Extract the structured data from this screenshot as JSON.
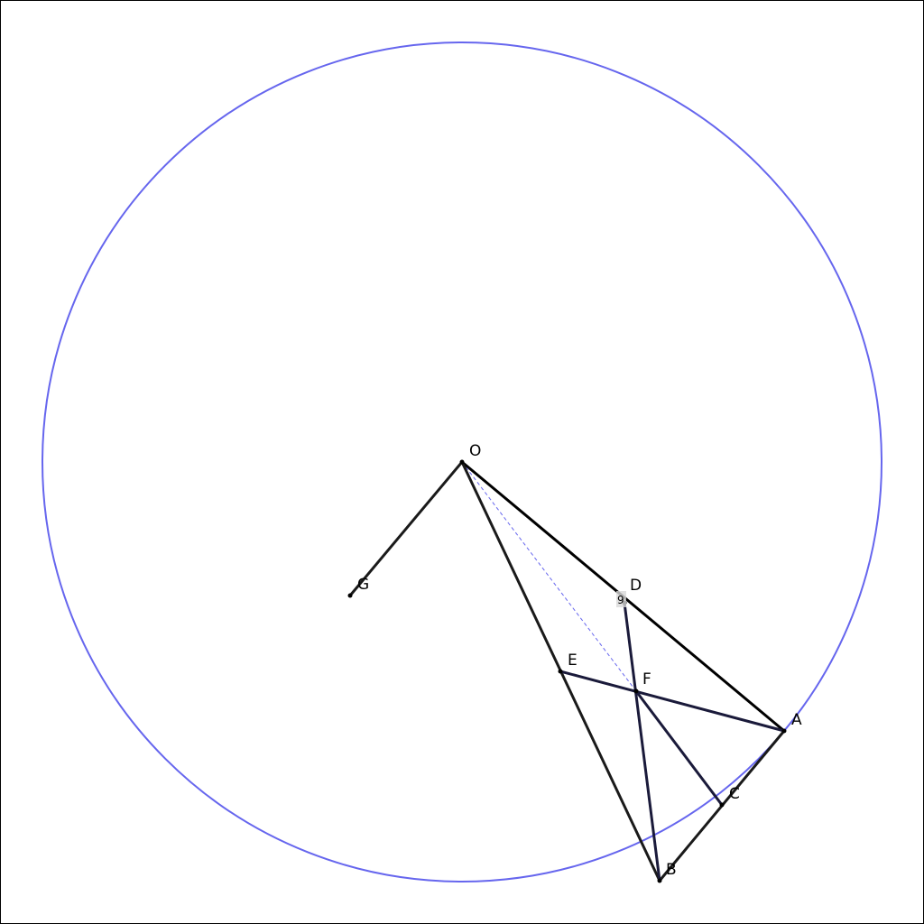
{
  "figure": {
    "circle": {
      "center": "O",
      "passes_through": [
        "A",
        "B"
      ],
      "color": "#6666ee"
    },
    "points": [
      {
        "id": "O",
        "label": "O"
      },
      {
        "id": "G",
        "label": "G"
      },
      {
        "id": "D",
        "label": "D"
      },
      {
        "id": "E",
        "label": "E"
      },
      {
        "id": "F",
        "label": "F"
      },
      {
        "id": "A",
        "label": "A"
      },
      {
        "id": "C",
        "label": "C"
      },
      {
        "id": "B",
        "label": "B"
      }
    ],
    "segments": [
      {
        "from": "O",
        "to": "G",
        "color": "#1a1a1a"
      },
      {
        "from": "O",
        "to": "A",
        "color": "#000000"
      },
      {
        "from": "O",
        "to": "B",
        "color": "#1a1a1a"
      },
      {
        "from": "A",
        "to": "B",
        "color": "#1a1a1a"
      },
      {
        "from": "D",
        "to": "B",
        "color": "#1a1a3a"
      },
      {
        "from": "E",
        "to": "A",
        "color": "#1a1a3a"
      },
      {
        "from": "F",
        "to": "C",
        "color": "#1a1a3a"
      }
    ],
    "dashed_segments": [
      {
        "from": "O",
        "to": "F",
        "color": "#6666ee"
      }
    ],
    "angle_marks": [
      {
        "at": "D",
        "text": "9"
      }
    ]
  }
}
